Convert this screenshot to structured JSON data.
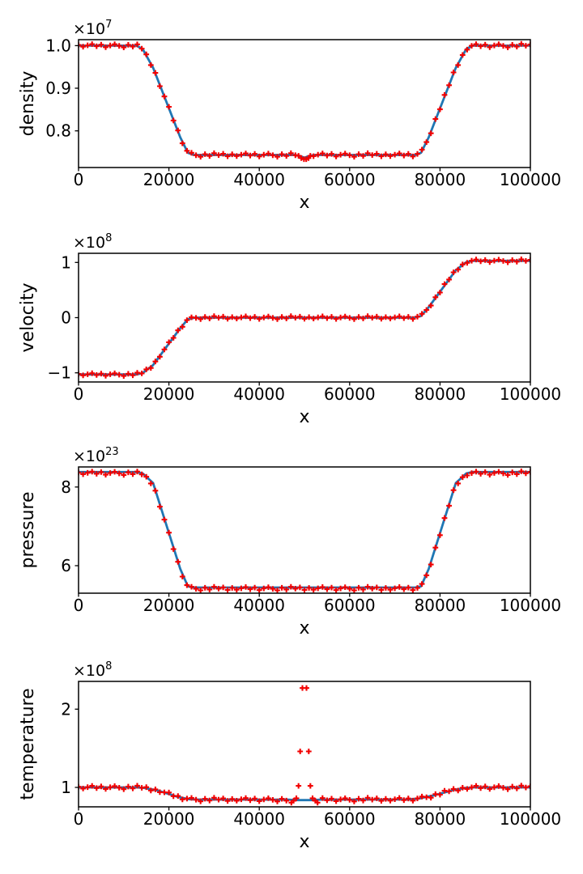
{
  "figure": {
    "background": "#ffffff",
    "axis_color": "#000000",
    "line_color": "#1f77b4",
    "marker_color": "#f20000",
    "marker_symbol": "+",
    "jitter_pattern": [
      0.35,
      -0.6,
      0.15,
      0.85,
      -0.35,
      0.55,
      -0.85,
      0.1,
      0.75,
      -0.15,
      -1.0,
      0.45,
      -0.55,
      1.0,
      -0.05,
      0.65,
      -0.75
    ]
  },
  "chart_data": [
    {
      "type": "line",
      "title": "",
      "xlabel": "x",
      "ylabel": "density",
      "offset_base": "×10",
      "offset_exp": "7",
      "unit_scale": "1e7",
      "xlim": [
        0,
        100000
      ],
      "ylim": [
        0.714,
        1.014
      ],
      "xticks": [
        0,
        20000,
        40000,
        60000,
        80000,
        100000
      ],
      "xtick_labels": [
        "0",
        "20000",
        "40000",
        "60000",
        "80000",
        "100000"
      ],
      "yticks": [
        0.8,
        0.9,
        1.0
      ],
      "ytick_labels": [
        "0.8",
        "0.9",
        "1.0"
      ],
      "grid": false,
      "legend": null,
      "series": [
        {
          "name": "reference-line",
          "kind": "line",
          "color": "#1f77b4",
          "points": [
            [
              0,
              1.0
            ],
            [
              12800,
              1.0
            ],
            [
              14200,
              0.992
            ],
            [
              16500,
              0.948
            ],
            [
              22500,
              0.785
            ],
            [
              24200,
              0.7485
            ],
            [
              25500,
              0.7435
            ],
            [
              47800,
              0.7435
            ],
            [
              49200,
              0.7405
            ],
            [
              50000,
              0.7368
            ],
            [
              50800,
              0.7405
            ],
            [
              52200,
              0.7435
            ],
            [
              74500,
              0.7435
            ],
            [
              75800,
              0.7485
            ],
            [
              77500,
              0.785
            ],
            [
              83500,
              0.948
            ],
            [
              85800,
              0.992
            ],
            [
              87200,
              1.0
            ],
            [
              100000,
              1.0
            ]
          ]
        },
        {
          "name": "particle-markers",
          "kind": "scatter",
          "marker": "+",
          "color": "#f20000",
          "x_start": 0,
          "x_step": 1000,
          "x_end": 100000,
          "follow_line": "reference-line",
          "jitter_amp": 0.0042,
          "bias": 0,
          "exclude": [
            48400,
            51600
          ],
          "extra_points": [
            [
              48700,
              0.7415
            ],
            [
              49300,
              0.7362
            ],
            [
              49900,
              0.7335
            ],
            [
              50400,
              0.7335
            ],
            [
              50900,
              0.7362
            ],
            [
              51300,
              0.7415
            ]
          ]
        }
      ]
    },
    {
      "type": "line",
      "title": "",
      "xlabel": "x",
      "ylabel": "velocity",
      "offset_base": "×10",
      "offset_exp": "8",
      "unit_scale": "1e8",
      "xlim": [
        0,
        100000
      ],
      "ylim": [
        -1.166,
        1.166
      ],
      "xticks": [
        0,
        20000,
        40000,
        60000,
        80000,
        100000
      ],
      "xtick_labels": [
        "0",
        "20000",
        "40000",
        "60000",
        "80000",
        "100000"
      ],
      "yticks": [
        -1,
        0,
        1
      ],
      "ytick_labels": [
        "−1",
        "0",
        "1"
      ],
      "grid": false,
      "legend": null,
      "series": [
        {
          "name": "reference-line",
          "kind": "line",
          "color": "#1f77b4",
          "points": [
            [
              0,
              -1.03
            ],
            [
              12800,
              -1.03
            ],
            [
              14200,
              -1.005
            ],
            [
              16500,
              -0.86
            ],
            [
              22500,
              -0.19
            ],
            [
              24200,
              -0.03
            ],
            [
              25800,
              0.0
            ],
            [
              74200,
              0.0
            ],
            [
              75800,
              0.03
            ],
            [
              77500,
              0.19
            ],
            [
              83500,
              0.86
            ],
            [
              85800,
              1.005
            ],
            [
              87200,
              1.03
            ],
            [
              100000,
              1.03
            ]
          ]
        },
        {
          "name": "particle-markers",
          "kind": "scatter",
          "marker": "+",
          "color": "#f20000",
          "x_start": 0,
          "x_step": 1000,
          "x_end": 100000,
          "follow_line": "reference-line",
          "jitter_amp": 0.027,
          "bias": 0,
          "exclude": null,
          "extra_points": []
        }
      ]
    },
    {
      "type": "line",
      "title": "",
      "xlabel": "x",
      "ylabel": "pressure",
      "offset_base": "×10",
      "offset_exp": "23",
      "unit_scale": "1e23",
      "xlim": [
        0,
        100000
      ],
      "ylim": [
        5.3,
        8.51
      ],
      "xticks": [
        0,
        20000,
        40000,
        60000,
        80000,
        100000
      ],
      "xtick_labels": [
        "0",
        "20000",
        "40000",
        "60000",
        "80000",
        "100000"
      ],
      "yticks": [
        6,
        8
      ],
      "ytick_labels": [
        "6",
        "8"
      ],
      "grid": false,
      "legend": null,
      "series": [
        {
          "name": "reference-line",
          "kind": "line",
          "color": "#1f77b4",
          "points": [
            [
              0,
              8.38
            ],
            [
              12800,
              8.38
            ],
            [
              14200,
              8.345
            ],
            [
              16500,
              8.1
            ],
            [
              22500,
              5.92
            ],
            [
              24200,
              5.475
            ],
            [
              25500,
              5.445
            ],
            [
              74500,
              5.445
            ],
            [
              75800,
              5.475
            ],
            [
              77500,
              5.92
            ],
            [
              83500,
              8.1
            ],
            [
              85800,
              8.345
            ],
            [
              87200,
              8.38
            ],
            [
              100000,
              8.38
            ]
          ]
        },
        {
          "name": "particle-markers",
          "kind": "scatter",
          "marker": "+",
          "color": "#f20000",
          "x_start": 0,
          "x_step": 1000,
          "x_end": 100000,
          "follow_line": "reference-line",
          "jitter_amp": 0.046,
          "bias": -0.028,
          "exclude": null,
          "extra_points": []
        }
      ]
    },
    {
      "type": "line",
      "title": "",
      "xlabel": "x",
      "ylabel": "temperature",
      "offset_base": "×10",
      "offset_exp": "8",
      "unit_scale": "1e8",
      "xlim": [
        0,
        100000
      ],
      "ylim": [
        0.752,
        2.355
      ],
      "xticks": [
        0,
        20000,
        40000,
        60000,
        80000,
        100000
      ],
      "xtick_labels": [
        "0",
        "20000",
        "40000",
        "60000",
        "80000",
        "100000"
      ],
      "yticks": [
        1,
        2
      ],
      "ytick_labels": [
        "1",
        "2"
      ],
      "grid": false,
      "legend": null,
      "series": [
        {
          "name": "reference-line",
          "kind": "line",
          "color": "#1f77b4",
          "points": [
            [
              0,
              1.0
            ],
            [
              12800,
              1.0
            ],
            [
              14500,
              0.994
            ],
            [
              17500,
              0.962
            ],
            [
              22000,
              0.878
            ],
            [
              24500,
              0.849
            ],
            [
              26500,
              0.845
            ],
            [
              46500,
              0.844
            ],
            [
              48000,
              0.838
            ],
            [
              52000,
              0.838
            ],
            [
              53500,
              0.844
            ],
            [
              73000,
              0.846
            ],
            [
              75500,
              0.86
            ],
            [
              79000,
              0.904
            ],
            [
              83000,
              0.966
            ],
            [
              85500,
              0.993
            ],
            [
              87500,
              1.0
            ],
            [
              100000,
              1.0
            ]
          ]
        },
        {
          "name": "particle-markers",
          "kind": "scatter",
          "marker": "+",
          "color": "#f20000",
          "x_start": 0,
          "x_step": 1000,
          "x_end": 100000,
          "follow_line": "reference-line",
          "jitter_amp": 0.023,
          "bias": 0,
          "exclude": [
            46800,
            53200
          ],
          "extra_points": [
            [
              47100,
              0.806
            ],
            [
              47600,
              0.83
            ],
            [
              48200,
              0.862
            ],
            [
              48700,
              1.02
            ],
            [
              49050,
              1.46
            ],
            [
              49550,
              2.27
            ],
            [
              50450,
              2.27
            ],
            [
              50950,
              1.46
            ],
            [
              51300,
              1.02
            ],
            [
              51800,
              0.862
            ],
            [
              52400,
              0.83
            ],
            [
              52900,
              0.806
            ]
          ]
        }
      ]
    }
  ]
}
